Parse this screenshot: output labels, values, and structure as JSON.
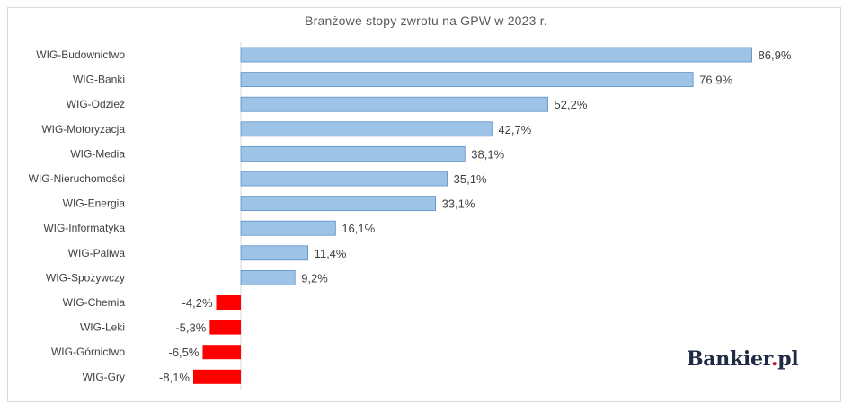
{
  "chart_data": {
    "type": "bar",
    "orientation": "horizontal",
    "title": "Branżowe stopy zwrotu na GPW w 2023 r.",
    "categories": [
      "WIG-Budownictwo",
      "WIG-Banki",
      "WIG-Odzież",
      "WIG-Motoryzacja",
      "WIG-Media",
      "WIG-Nieruchomości",
      "WIG-Energia",
      "WIG-Informatyka",
      "WIG-Paliwa",
      "WIG-Spożywczy",
      "WIG-Chemia",
      "WIG-Leki",
      "WIG-Górnictwo",
      "WIG-Gry"
    ],
    "values": [
      86.9,
      76.9,
      52.2,
      42.7,
      38.1,
      35.1,
      33.1,
      16.1,
      11.4,
      9.2,
      -4.2,
      -5.3,
      -6.5,
      -8.1
    ],
    "labels": [
      "86,9%",
      "76,9%",
      "52,2%",
      "42,7%",
      "38,1%",
      "35,1%",
      "33,1%",
      "16,1%",
      "11,4%",
      "9,2%",
      "-4,2%",
      "-5,3%",
      "-6,5%",
      "-8,1%"
    ],
    "unit": "%",
    "colors": {
      "positive": "#9dc3e6",
      "positive_border": "#5b8fc7",
      "negative": "#ff0000"
    },
    "grid": false,
    "legend": "none"
  },
  "brand": {
    "name": "Bankier",
    "suffix": ".pl",
    "suffix_dot": ".",
    "suffix_tld": "pl"
  }
}
